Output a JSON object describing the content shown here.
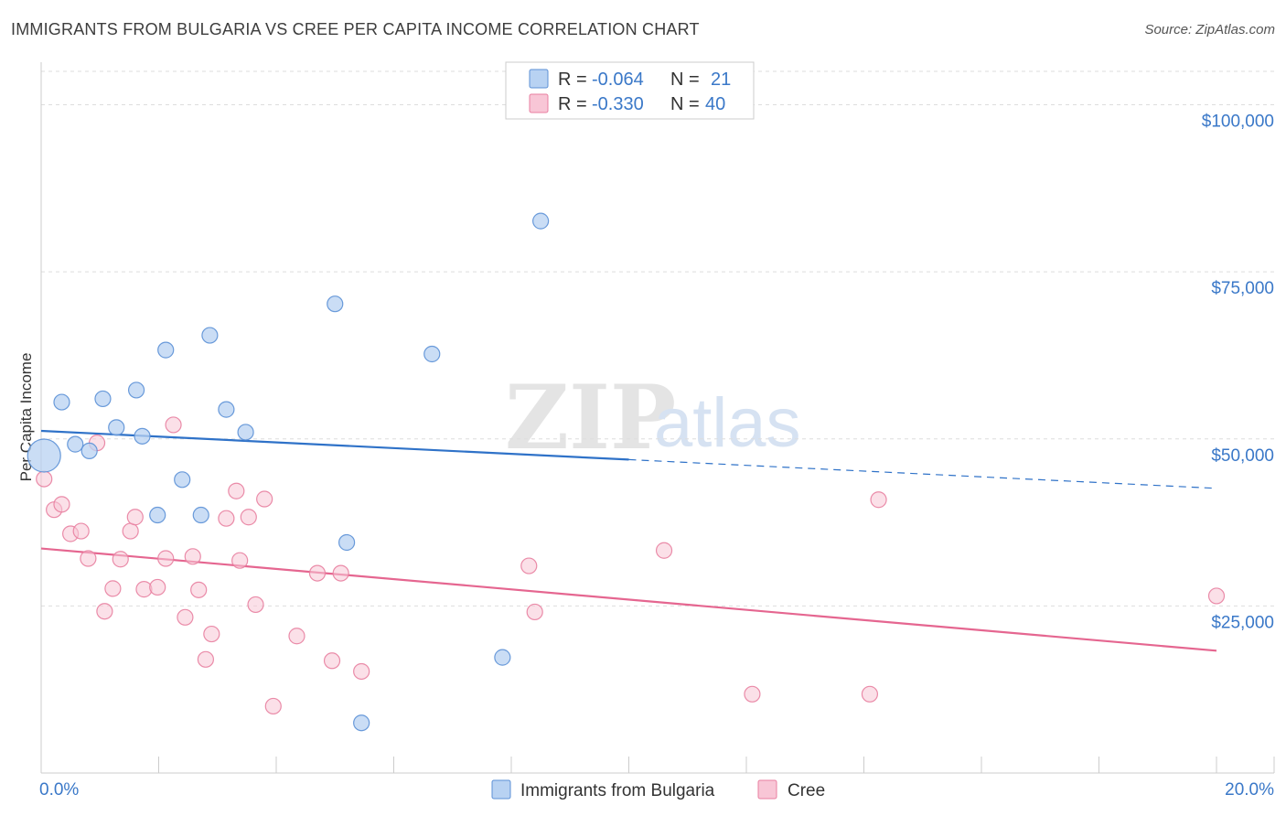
{
  "title": "IMMIGRANTS FROM BULGARIA VS CREE PER CAPITA INCOME CORRELATION CHART",
  "source": "Source: ZipAtlas.com",
  "watermark": {
    "zip": "ZIP",
    "atlas": "atlas"
  },
  "colors": {
    "bulgaria_fill": "#b8d2f2",
    "bulgaria_stroke": "#5b90d6",
    "bulgaria_line": "#2f72c8",
    "cree_fill": "#f8c6d6",
    "cree_stroke": "#e87fa0",
    "cree_line": "#e56690",
    "tick_text": "#3a78c8",
    "grid": "#dddddd"
  },
  "legend": {
    "rows": [
      {
        "r_label": "R = ",
        "r_value": "-0.064",
        "n_label": "N = ",
        "n_value": "21"
      },
      {
        "r_label": "R = ",
        "r_value": "-0.330",
        "n_label": "N = ",
        "n_value": "40"
      }
    ]
  },
  "chart_data": {
    "type": "scatter",
    "xlabel": "",
    "ylabel": "Per Capita Income",
    "xlim": [
      0,
      20
    ],
    "ylim": [
      0,
      105000
    ],
    "x_tick_labels": [
      "0.0%",
      "20.0%"
    ],
    "y_ticks": [
      {
        "value": 25000,
        "label": "$25,000"
      },
      {
        "value": 50000,
        "label": "$50,000"
      },
      {
        "value": 75000,
        "label": "$75,000"
      },
      {
        "value": 100000,
        "label": "$100,000"
      }
    ],
    "grid": true,
    "legend_position": "top-center",
    "series": [
      {
        "name": "Immigrants from Bulgaria",
        "color": "#b8d2f2",
        "points": [
          {
            "x": 0.05,
            "y": 47500,
            "large": true
          },
          {
            "x": 0.35,
            "y": 55500
          },
          {
            "x": 0.58,
            "y": 49200
          },
          {
            "x": 0.82,
            "y": 48200
          },
          {
            "x": 1.05,
            "y": 56000
          },
          {
            "x": 1.28,
            "y": 51700
          },
          {
            "x": 1.62,
            "y": 57300
          },
          {
            "x": 1.72,
            "y": 50400
          },
          {
            "x": 1.98,
            "y": 38600
          },
          {
            "x": 2.12,
            "y": 63300
          },
          {
            "x": 2.4,
            "y": 43900
          },
          {
            "x": 2.72,
            "y": 38600
          },
          {
            "x": 2.87,
            "y": 65500
          },
          {
            "x": 3.15,
            "y": 54400
          },
          {
            "x": 3.48,
            "y": 51000
          },
          {
            "x": 5.0,
            "y": 70200
          },
          {
            "x": 5.2,
            "y": 34500
          },
          {
            "x": 5.45,
            "y": 7500
          },
          {
            "x": 6.65,
            "y": 62700
          },
          {
            "x": 7.85,
            "y": 17300
          },
          {
            "x": 8.5,
            "y": 82600
          }
        ],
        "trend": {
          "x_start": 0,
          "y_start": 51200,
          "x_solid_end": 10.0,
          "x_end": 20.0,
          "y_end": 42600
        }
      },
      {
        "name": "Cree",
        "color": "#f8c6d6",
        "points": [
          {
            "x": 0.05,
            "y": 44000
          },
          {
            "x": 0.22,
            "y": 39400
          },
          {
            "x": 0.35,
            "y": 40200
          },
          {
            "x": 0.5,
            "y": 35800
          },
          {
            "x": 0.68,
            "y": 36200
          },
          {
            "x": 0.8,
            "y": 32100
          },
          {
            "x": 0.95,
            "y": 49400
          },
          {
            "x": 1.08,
            "y": 24200
          },
          {
            "x": 1.22,
            "y": 27600
          },
          {
            "x": 1.35,
            "y": 32000
          },
          {
            "x": 1.52,
            "y": 36200
          },
          {
            "x": 1.6,
            "y": 38300
          },
          {
            "x": 1.75,
            "y": 27500
          },
          {
            "x": 1.98,
            "y": 27800
          },
          {
            "x": 2.12,
            "y": 32100
          },
          {
            "x": 2.25,
            "y": 52100
          },
          {
            "x": 2.45,
            "y": 23300
          },
          {
            "x": 2.58,
            "y": 32400
          },
          {
            "x": 2.68,
            "y": 27400
          },
          {
            "x": 2.8,
            "y": 17000
          },
          {
            "x": 2.9,
            "y": 20800
          },
          {
            "x": 3.15,
            "y": 38100
          },
          {
            "x": 3.32,
            "y": 42200
          },
          {
            "x": 3.38,
            "y": 31800
          },
          {
            "x": 3.53,
            "y": 38300
          },
          {
            "x": 3.65,
            "y": 25200
          },
          {
            "x": 3.8,
            "y": 41000
          },
          {
            "x": 3.95,
            "y": 10000
          },
          {
            "x": 4.35,
            "y": 20500
          },
          {
            "x": 4.7,
            "y": 29900
          },
          {
            "x": 4.95,
            "y": 16800
          },
          {
            "x": 5.1,
            "y": 29900
          },
          {
            "x": 5.45,
            "y": 15200
          },
          {
            "x": 8.3,
            "y": 31000
          },
          {
            "x": 8.4,
            "y": 24100
          },
          {
            "x": 10.6,
            "y": 33300
          },
          {
            "x": 12.1,
            "y": 11800
          },
          {
            "x": 14.1,
            "y": 11800
          },
          {
            "x": 14.25,
            "y": 40900
          },
          {
            "x": 20.0,
            "y": 26500
          }
        ],
        "trend": {
          "x_start": 0,
          "y_start": 33600,
          "x_solid_end": 20.0,
          "x_end": 20.0,
          "y_end": 18300
        }
      }
    ]
  }
}
